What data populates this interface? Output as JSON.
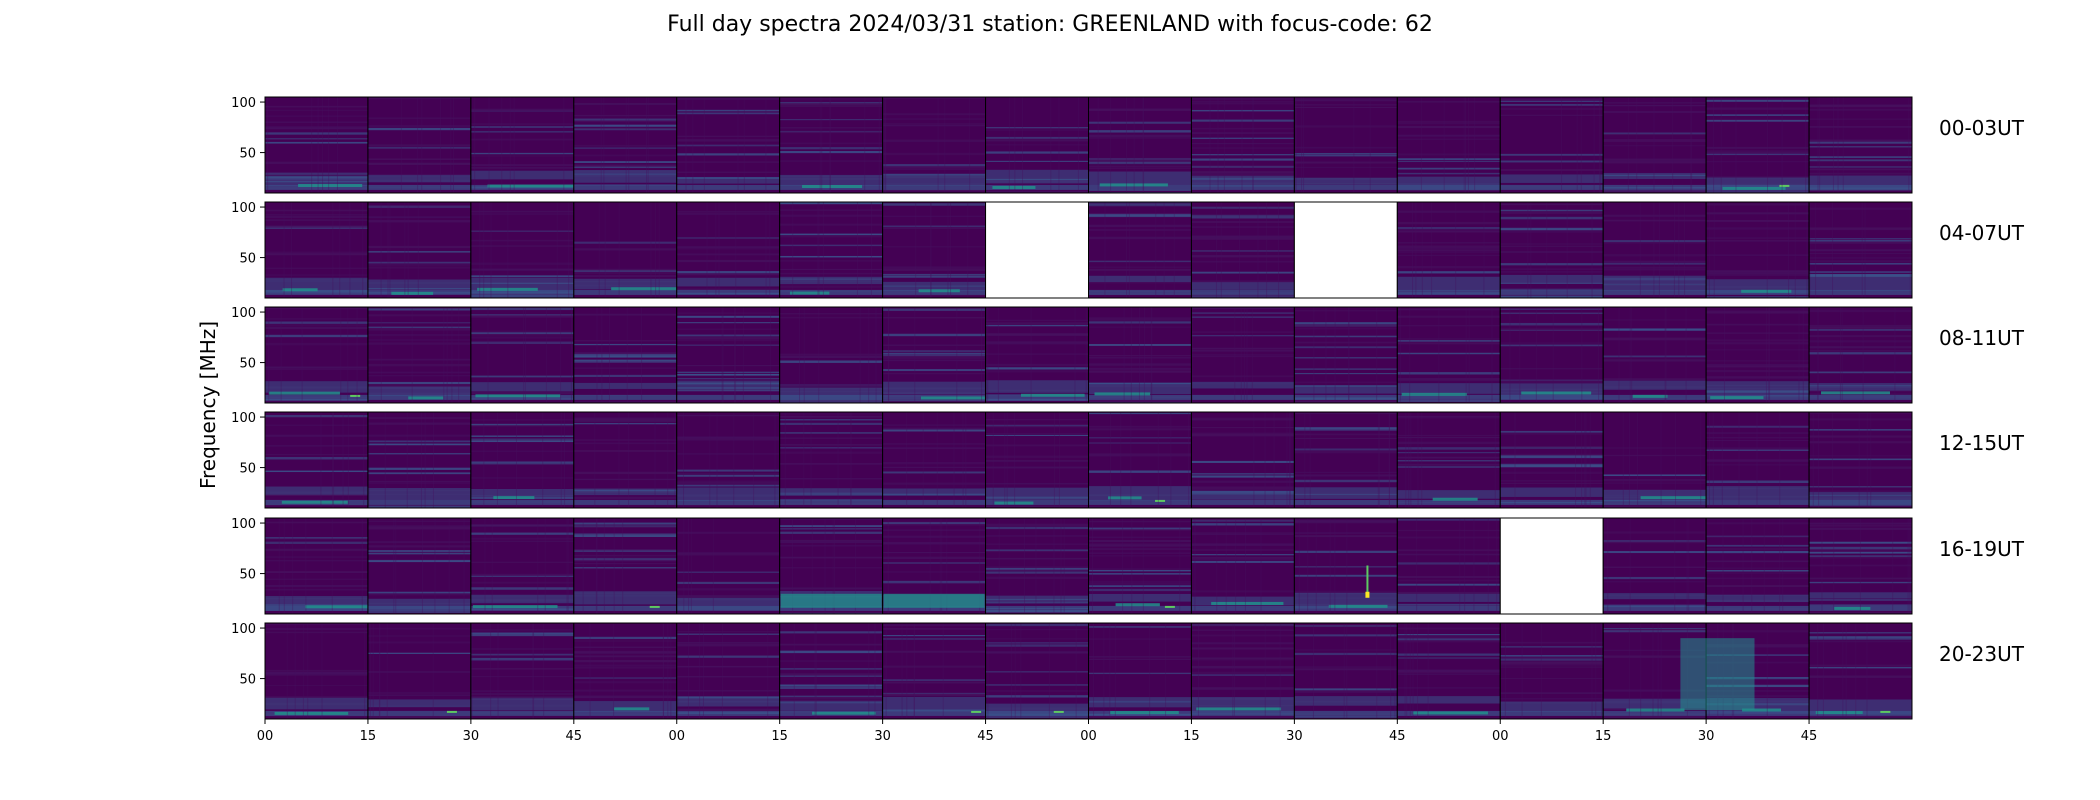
{
  "chart_data": {
    "type": "heatmap",
    "title": "Full day spectra 2024/03/31 station: GREENLAND with focus-code: 62",
    "ylabel": "Frequency [MHz]",
    "ylim": [
      10,
      105
    ],
    "yticks": [
      "100",
      "50"
    ],
    "colormap": "viridis",
    "xtick_labels": [
      "00",
      "15",
      "30",
      "45",
      "00",
      "15",
      "30",
      "45",
      "00",
      "15",
      "30",
      "45",
      "00",
      "15",
      "30",
      "45"
    ],
    "rows": [
      {
        "label": "00-03UT",
        "missing_panels": []
      },
      {
        "label": "04-07UT",
        "missing_panels": [
          7,
          10
        ]
      },
      {
        "label": "08-11UT",
        "missing_panels": []
      },
      {
        "label": "12-15UT",
        "missing_panels": []
      },
      {
        "label": "16-19UT",
        "missing_panels": [
          12
        ]
      },
      {
        "label": "20-23UT",
        "missing_panels": []
      }
    ],
    "panels_per_row": 16,
    "palette": {
      "background": "#440154",
      "dark": "#46105e",
      "mid": "#3b528b",
      "teal": "#21918c",
      "green": "#5ec962",
      "yellow": "#fde725"
    }
  }
}
